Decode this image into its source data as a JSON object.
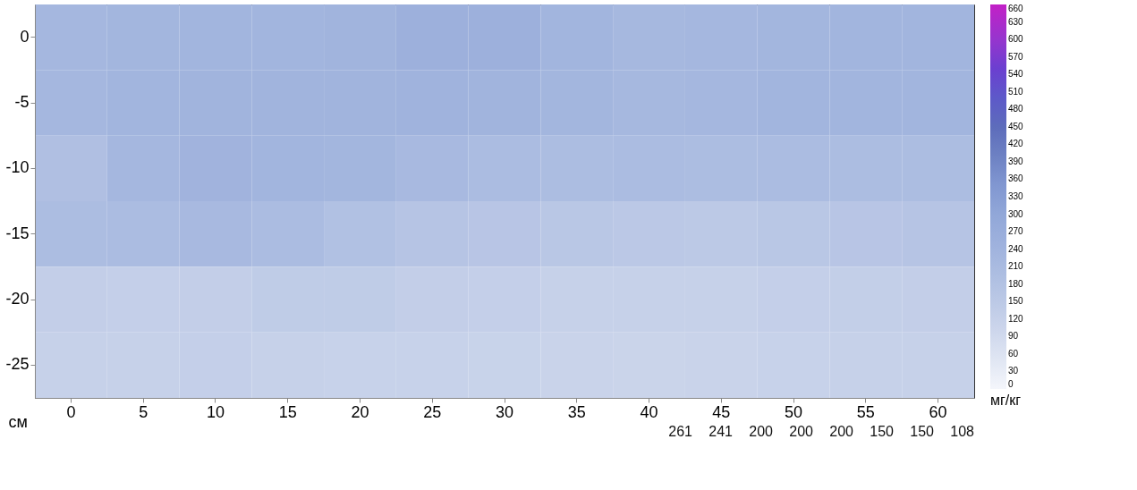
{
  "chart_data": {
    "type": "heatmap",
    "xlabel": "см",
    "clabel": "мг/кг",
    "categories": [
      "0",
      "5",
      "10",
      "15",
      "20",
      "25",
      "30",
      "35",
      "40",
      "45",
      "50",
      "55",
      "60"
    ],
    "y_categories": [
      "0",
      "-5",
      "-10",
      "-15",
      "-20",
      "-25"
    ],
    "cells": [
      [
        225,
        230,
        235,
        235,
        240,
        255,
        255,
        235,
        220,
        225,
        230,
        235,
        235
      ],
      [
        225,
        235,
        240,
        240,
        240,
        245,
        240,
        230,
        220,
        225,
        235,
        235,
        235
      ],
      [
        190,
        225,
        241,
        235,
        230,
        215,
        205,
        200,
        205,
        200,
        205,
        200,
        200
      ],
      [
        200,
        205,
        215,
        205,
        185,
        170,
        165,
        160,
        155,
        150,
        160,
        165,
        170
      ],
      [
        130,
        125,
        130,
        140,
        140,
        130,
        125,
        120,
        118,
        120,
        125,
        128,
        130
      ],
      [
        120,
        120,
        125,
        120,
        115,
        115,
        112,
        110,
        108,
        110,
        115,
        118,
        118
      ]
    ],
    "clim": [
      0,
      660
    ],
    "cticks": [
      0,
      30,
      60,
      90,
      120,
      150,
      180,
      210,
      240,
      270,
      300,
      330,
      360,
      390,
      420,
      450,
      480,
      510,
      540,
      570,
      600,
      630,
      660
    ],
    "annotations": [
      "261",
      "241",
      "200",
      "200",
      "200",
      "150",
      "150",
      "108"
    ],
    "grid": false
  }
}
